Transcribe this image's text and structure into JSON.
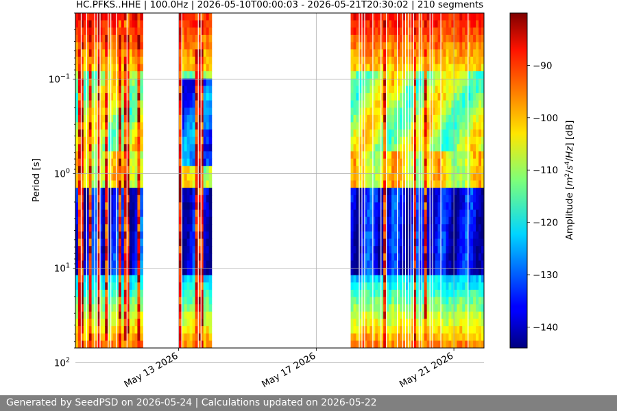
{
  "chart_data": {
    "type": "heatmap",
    "title": "HC.PFKS..HHE | 100.0Hz | 2026-05-10T00:00:03 - 2026-05-21T20:30:02 | 210 segments",
    "xlabel": "",
    "ylabel": "Period [s]",
    "y_scale": "log",
    "y_inverted": true,
    "y_range": [
      0.02,
      70
    ],
    "y_ticks": [
      {
        "value": 0.1,
        "base": "10",
        "exp": "−1"
      },
      {
        "value": 1,
        "base": "10",
        "exp": "0"
      },
      {
        "value": 10,
        "base": "10",
        "exp": "1"
      },
      {
        "value": 100,
        "base": "10",
        "exp": "2"
      }
    ],
    "x_range": [
      "2026-05-10T00:00:00",
      "2026-05-21T21:00:00"
    ],
    "x_ticks": [
      {
        "value": "2026-05-13",
        "label": "May 13 2026"
      },
      {
        "value": "2026-05-17",
        "label": "May 17 2026"
      },
      {
        "value": "2026-05-21",
        "label": "May 21 2026"
      }
    ],
    "grid": true,
    "data_blocks": [
      {
        "start": "2026-05-10T00:00:00",
        "end": "2026-05-11T23:00:00"
      },
      {
        "start": "2026-05-13T00:00:00",
        "end": "2026-05-13T23:00:00"
      },
      {
        "start": "2026-05-18T00:00:00",
        "end": "2026-05-21T21:00:00"
      }
    ],
    "colorbar": {
      "label": "Amplitude [m²/s⁴/Hz] [dB]",
      "label_parts": {
        "prefix": "Amplitude [",
        "var_m": "m",
        "sup_m": "2",
        "slash1": "/",
        "var_s": "s",
        "sup_s": "4",
        "slash2": "/",
        "var_hz": "Hz",
        "suffix": "] [dB]"
      },
      "range": [
        -144,
        -80
      ],
      "ticks": [
        {
          "value": -90,
          "label": "−90"
        },
        {
          "value": -100,
          "label": "−100"
        },
        {
          "value": -110,
          "label": "−110"
        },
        {
          "value": -120,
          "label": "−120"
        },
        {
          "value": -130,
          "label": "−130"
        },
        {
          "value": -140,
          "label": "−140"
        }
      ],
      "colormap": "jet"
    }
  },
  "footer": {
    "text": "Generated by SeedPSD on 2026-05-24 | Calculations updated on 2026-05-22"
  }
}
